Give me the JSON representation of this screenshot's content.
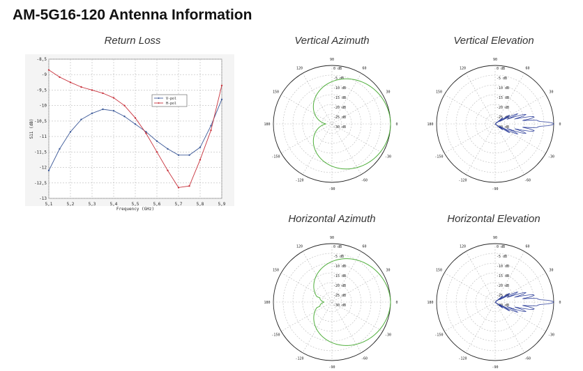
{
  "page": {
    "title": "AM-5G16-120 Antenna Information"
  },
  "chart_data": [
    {
      "id": "return-loss",
      "type": "line",
      "title": "Return Loss",
      "xlabel": "Frequency (GHz)",
      "ylabel": "S11 (dB)",
      "xlim": [
        5.1,
        5.9
      ],
      "ylim": [
        -13,
        -8.5
      ],
      "xticks": [
        "5,1",
        "5,2",
        "5,3",
        "5,4",
        "5,5",
        "5,6",
        "5,7",
        "5,8",
        "5,9"
      ],
      "yticks": [
        "-8,5",
        "-9",
        "-9,5",
        "-10",
        "-10,5",
        "-11",
        "-11,5",
        "-12",
        "-12,5",
        "-13"
      ],
      "grid": true,
      "legend": "upper-middle",
      "series": [
        {
          "name": "V-pol",
          "color": "#3d5a99",
          "x": [
            5.1,
            5.15,
            5.2,
            5.25,
            5.3,
            5.35,
            5.4,
            5.45,
            5.5,
            5.55,
            5.6,
            5.65,
            5.7,
            5.75,
            5.8,
            5.85,
            5.9
          ],
          "y": [
            -12.1,
            -11.4,
            -10.85,
            -10.45,
            -10.25,
            -10.12,
            -10.17,
            -10.35,
            -10.6,
            -10.85,
            -11.15,
            -11.4,
            -11.6,
            -11.6,
            -11.35,
            -10.65,
            -9.8
          ]
        },
        {
          "name": "H-pol",
          "color": "#c8323c",
          "x": [
            5.1,
            5.15,
            5.2,
            5.25,
            5.3,
            5.35,
            5.4,
            5.45,
            5.5,
            5.55,
            5.6,
            5.65,
            5.7,
            5.75,
            5.8,
            5.85,
            5.9
          ],
          "y": [
            -8.85,
            -9.08,
            -9.25,
            -9.4,
            -9.5,
            -9.6,
            -9.75,
            -10.0,
            -10.4,
            -10.9,
            -11.5,
            -12.1,
            -12.65,
            -12.6,
            -11.75,
            -10.8,
            -9.35
          ]
        }
      ]
    },
    {
      "id": "vertical-azimuth",
      "type": "polar",
      "title": "Vertical Azimuth",
      "rlabels": [
        "0 dB",
        "-5 dB",
        "-10 dB",
        "-15 dB",
        "-20 dB",
        "-25 dB",
        "-30 dB"
      ],
      "anglabels": [
        "90",
        "60",
        "30",
        "0",
        "-30",
        "-60",
        "-90",
        "-120",
        "-150",
        "180",
        "150",
        "120"
      ],
      "series": [
        {
          "color": "#4fae3b",
          "pattern": "cardioid",
          "beamwidth_deg": 120,
          "back_db": -28
        }
      ]
    },
    {
      "id": "vertical-elevation",
      "type": "polar",
      "title": "Vertical Elevation",
      "rlabels": [
        "0 dB",
        "-5 dB",
        "-10 dB",
        "-15 dB",
        "-20 dB",
        "-25 dB",
        "-30 dB"
      ],
      "anglabels": [
        "90",
        "60",
        "30",
        "0",
        "-30",
        "-60",
        "-90",
        "-120",
        "-150",
        "180",
        "150",
        "120"
      ],
      "series": [
        {
          "color": "#2d3f9b",
          "pattern": "narrow-beam",
          "beamwidth_deg": 8
        }
      ]
    },
    {
      "id": "horizontal-azimuth",
      "type": "polar",
      "title": "Horizontal Azimuth",
      "rlabels": [
        "0 dB",
        "-5 dB",
        "-10 dB",
        "-15 dB",
        "-20 dB",
        "-25 dB",
        "-30 dB"
      ],
      "anglabels": [
        "90",
        "60",
        "30",
        "0",
        "-30",
        "-60",
        "-90",
        "-120",
        "-150",
        "180",
        "150",
        "120"
      ],
      "series": [
        {
          "color": "#4fae3b",
          "pattern": "cardioid-lobed",
          "beamwidth_deg": 120,
          "back_db": -26
        }
      ]
    },
    {
      "id": "horizontal-elevation",
      "type": "polar",
      "title": "Horizontal Elevation",
      "rlabels": [
        "0 dB",
        "-5 dB",
        "-10 dB",
        "-15 dB",
        "-20 dB",
        "-25 dB",
        "-30 dB"
      ],
      "anglabels": [
        "90",
        "60",
        "30",
        "0",
        "-30",
        "-60",
        "-90",
        "-120",
        "-150",
        "180",
        "150",
        "120"
      ],
      "series": [
        {
          "color": "#2d3f9b",
          "pattern": "narrow-beam",
          "beamwidth_deg": 8
        }
      ]
    }
  ]
}
